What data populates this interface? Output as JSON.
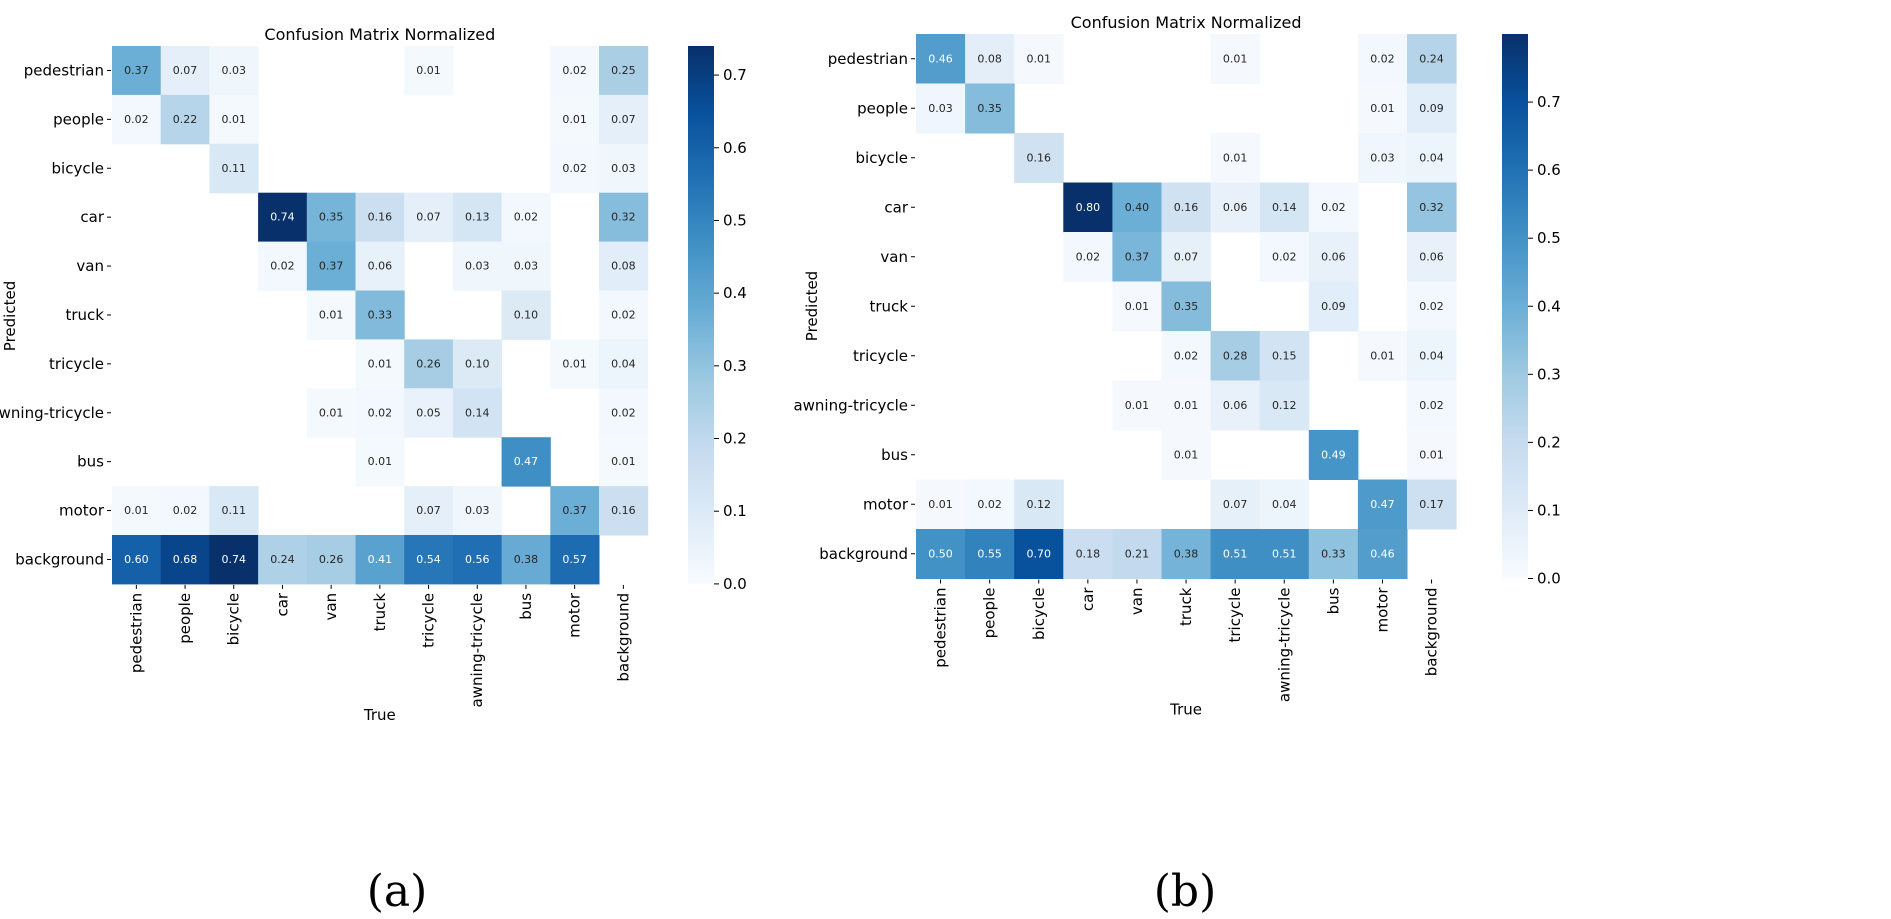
{
  "colormap": [
    "#f7fbff",
    "#deebf7",
    "#c6dbef",
    "#9ecae1",
    "#6baed6",
    "#4292c6",
    "#2171b5",
    "#08519c",
    "#08306b"
  ],
  "chart_data": [
    {
      "type": "heatmap",
      "caption": "(a)",
      "title": "Confusion Matrix Normalized",
      "xlabel": "True",
      "ylabel": "Predicted",
      "x_categories": [
        "pedestrian",
        "people",
        "bicycle",
        "car",
        "van",
        "truck",
        "tricycle",
        "awning-tricycle",
        "bus",
        "motor",
        "background"
      ],
      "y_categories": [
        "pedestrian",
        "people",
        "bicycle",
        "car",
        "van",
        "truck",
        "tricycle",
        "awning-tricycle",
        "bus",
        "motor",
        "background"
      ],
      "vmin": 0,
      "vmax": 0.74,
      "colorbar_ticks": [
        "0.0",
        "0.1",
        "0.2",
        "0.3",
        "0.4",
        "0.5",
        "0.6",
        "0.7"
      ],
      "values": [
        [
          0.37,
          0.07,
          0.03,
          null,
          null,
          null,
          0.01,
          null,
          null,
          0.02,
          0.25
        ],
        [
          0.02,
          0.22,
          0.01,
          null,
          null,
          null,
          null,
          null,
          null,
          0.01,
          0.07
        ],
        [
          null,
          null,
          0.11,
          null,
          null,
          null,
          null,
          null,
          null,
          0.02,
          0.03
        ],
        [
          null,
          null,
          null,
          0.74,
          0.35,
          0.16,
          0.07,
          0.13,
          0.02,
          null,
          0.32
        ],
        [
          null,
          null,
          null,
          0.02,
          0.37,
          0.06,
          null,
          0.03,
          0.03,
          null,
          0.08
        ],
        [
          null,
          null,
          null,
          null,
          0.01,
          0.33,
          null,
          null,
          0.1,
          null,
          0.02
        ],
        [
          null,
          null,
          null,
          null,
          null,
          0.01,
          0.26,
          0.1,
          null,
          0.01,
          0.04
        ],
        [
          null,
          null,
          null,
          null,
          0.01,
          0.02,
          0.05,
          0.14,
          null,
          null,
          0.02
        ],
        [
          null,
          null,
          null,
          null,
          null,
          0.01,
          null,
          null,
          0.47,
          null,
          0.01
        ],
        [
          0.01,
          0.02,
          0.11,
          null,
          null,
          null,
          0.07,
          0.03,
          null,
          0.37,
          0.16
        ],
        [
          0.6,
          0.68,
          0.74,
          0.24,
          0.26,
          0.41,
          0.54,
          0.56,
          0.38,
          0.57,
          null
        ]
      ]
    },
    {
      "type": "heatmap",
      "caption": "(b)",
      "title": "Confusion Matrix Normalized",
      "xlabel": "True",
      "ylabel": "Predicted",
      "x_categories": [
        "pedestrian",
        "people",
        "bicycle",
        "car",
        "van",
        "truck",
        "tricycle",
        "awning-tricycle",
        "bus",
        "motor",
        "background"
      ],
      "y_categories": [
        "pedestrian",
        "people",
        "bicycle",
        "car",
        "van",
        "truck",
        "tricycle",
        "awning-tricycle",
        "bus",
        "motor",
        "background"
      ],
      "vmin": 0,
      "vmax": 0.8,
      "colorbar_ticks": [
        "0.0",
        "0.1",
        "0.2",
        "0.3",
        "0.4",
        "0.5",
        "0.6",
        "0.7"
      ],
      "values": [
        [
          0.46,
          0.08,
          0.01,
          null,
          null,
          null,
          0.01,
          null,
          null,
          0.02,
          0.24
        ],
        [
          0.03,
          0.35,
          null,
          null,
          null,
          null,
          null,
          null,
          null,
          0.01,
          0.09
        ],
        [
          null,
          null,
          0.16,
          null,
          null,
          null,
          0.01,
          null,
          null,
          0.03,
          0.04
        ],
        [
          null,
          null,
          null,
          0.8,
          0.4,
          0.16,
          0.06,
          0.14,
          0.02,
          null,
          0.32
        ],
        [
          null,
          null,
          null,
          0.02,
          0.37,
          0.07,
          null,
          0.02,
          0.06,
          null,
          0.06
        ],
        [
          null,
          null,
          null,
          null,
          0.01,
          0.35,
          null,
          null,
          0.09,
          null,
          0.02
        ],
        [
          null,
          null,
          null,
          null,
          null,
          0.02,
          0.28,
          0.15,
          null,
          0.01,
          0.04
        ],
        [
          null,
          null,
          null,
          null,
          0.01,
          0.01,
          0.06,
          0.12,
          null,
          null,
          0.02
        ],
        [
          null,
          null,
          null,
          null,
          null,
          0.01,
          null,
          null,
          0.49,
          null,
          0.01
        ],
        [
          0.01,
          0.02,
          0.12,
          null,
          null,
          null,
          0.07,
          0.04,
          null,
          0.47,
          0.17
        ],
        [
          0.5,
          0.55,
          0.7,
          0.18,
          0.21,
          0.38,
          0.51,
          0.51,
          0.33,
          0.46,
          null
        ]
      ]
    }
  ]
}
